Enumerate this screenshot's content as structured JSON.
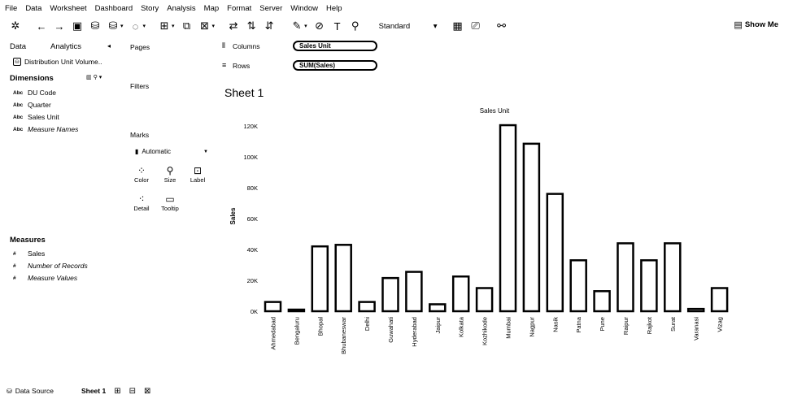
{
  "menu": [
    "File",
    "Data",
    "Worksheet",
    "Dashboard",
    "Story",
    "Analysis",
    "Map",
    "Format",
    "Server",
    "Window",
    "Help"
  ],
  "toolbar": {
    "view_mode": "Standard",
    "show_me": "Show Me",
    "icons": [
      "tableau-logo-icon",
      "undo-icon",
      "redo-icon",
      "save-icon",
      "new-datasource-icon",
      "pause-updates-icon",
      "run-update-icon",
      "new-worksheet-icon",
      "duplicate-icon",
      "clear-icon",
      "swap-icon",
      "sort-asc-icon",
      "sort-desc-icon",
      "highlight-icon",
      "group-icon",
      "label-icon",
      "pin-icon",
      "fit-icon",
      "presentation-icon",
      "share-icon"
    ]
  },
  "left_panel": {
    "tab_data": "Data",
    "tab_analytics": "Analytics",
    "datasource": "Distribution Unit Volume..",
    "dimensions_title": "Dimensions",
    "dimensions": [
      {
        "type": "Abc",
        "name": "DU Code",
        "italic": false
      },
      {
        "type": "Abc",
        "name": "Quarter",
        "italic": false
      },
      {
        "type": "Abc",
        "name": "Sales Unit",
        "italic": false
      },
      {
        "type": "Abc",
        "name": "Measure Names",
        "italic": true
      }
    ],
    "measures_title": "Measures",
    "measures": [
      {
        "type": "#",
        "name": "Sales",
        "italic": false
      },
      {
        "type": "#",
        "name": "Number of Records",
        "italic": true
      },
      {
        "type": "#",
        "name": "Measure Values",
        "italic": true
      }
    ]
  },
  "cards": {
    "pages": "Pages",
    "filters": "Filters",
    "marks": "Marks",
    "mark_type": "Automatic",
    "buttons": {
      "color": "Color",
      "size": "Size",
      "label": "Label",
      "detail": "Detail",
      "tooltip": "Tooltip"
    }
  },
  "shelves": {
    "columns_label": "Columns",
    "rows_label": "Rows",
    "columns_pill": "Sales Unit",
    "rows_pill": "SUM(Sales)"
  },
  "sheet": {
    "title": "Sheet 1"
  },
  "chart_data": {
    "type": "bar",
    "title": "Sales Unit",
    "xlabel": "",
    "ylabel": "Sales",
    "ylim": [
      0,
      120000
    ],
    "yticks": [
      0,
      20000,
      40000,
      60000,
      80000,
      100000,
      120000
    ],
    "ytick_labels": [
      "0K",
      "20K",
      "40K",
      "60K",
      "80K",
      "100K",
      "120K"
    ],
    "categories": [
      "Ahmedabad",
      "Bengaluru",
      "Bhopal",
      "Bhubaneswar",
      "Delhi",
      "Guwahati",
      "Hyderabad",
      "Jaipur",
      "Kolkata",
      "Kozhikode",
      "Mumbai",
      "Nagpur",
      "Nasik",
      "Patna",
      "Pune",
      "Raipur",
      "Rajkot",
      "Surat",
      "Varanasi",
      "Vizag"
    ],
    "values": [
      6000,
      1000,
      42000,
      43000,
      6000,
      21500,
      25500,
      4500,
      22500,
      15000,
      120500,
      108500,
      76000,
      33000,
      13000,
      44000,
      33000,
      44000,
      1500,
      15000
    ]
  },
  "bottom": {
    "data_source": "Data Source",
    "sheet_tab": "Sheet 1"
  }
}
